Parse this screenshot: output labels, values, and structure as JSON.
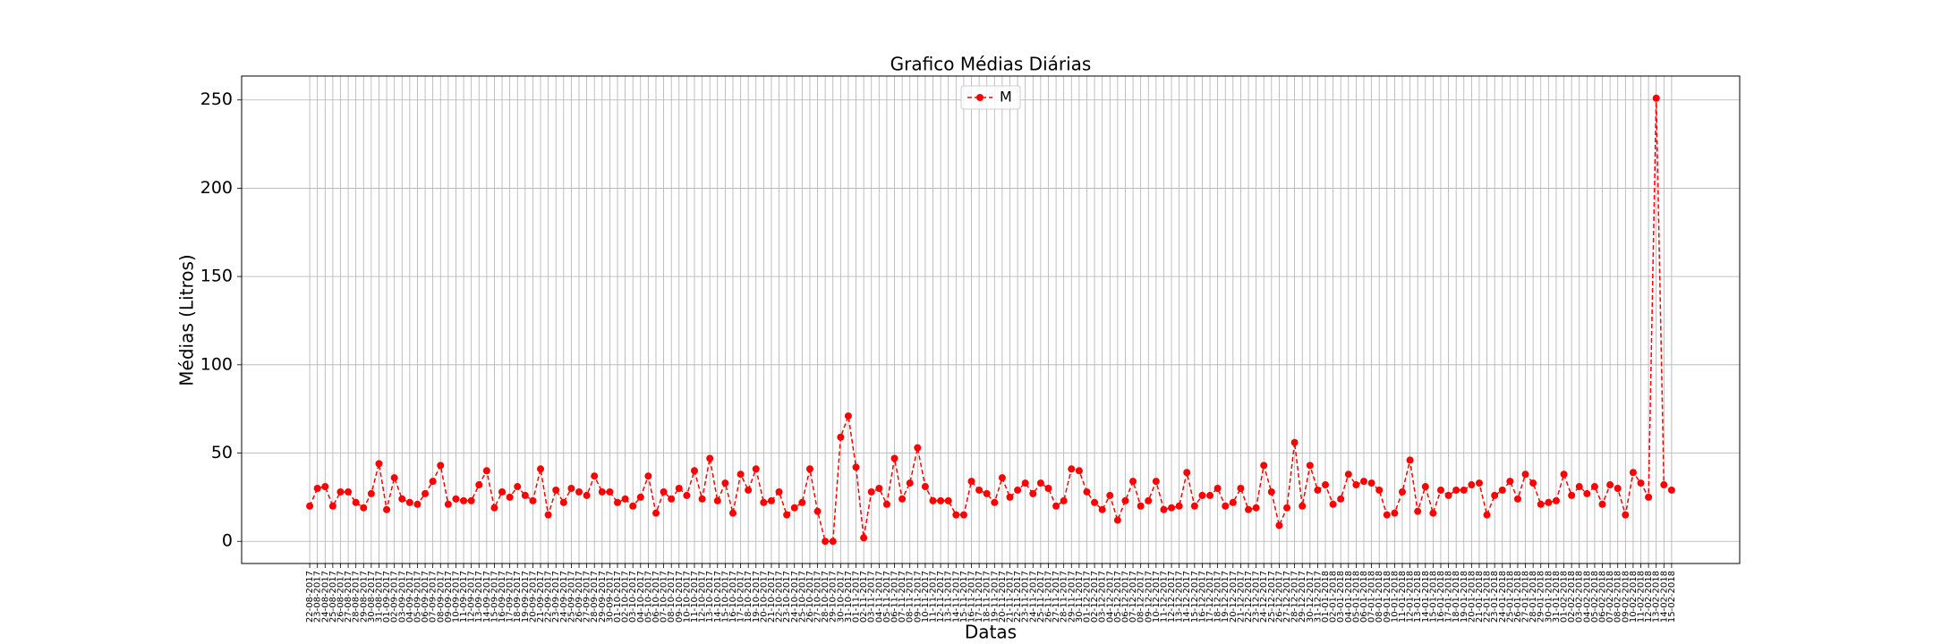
{
  "chart_data": {
    "type": "line",
    "title": "Grafico Médias Diárias",
    "xlabel": "Datas",
    "ylabel": "Médias (Litros)",
    "categories": [
      "22-08-2017",
      "23-08-2017",
      "24-08-2017",
      "25-08-2017",
      "26-08-2017",
      "27-08-2017",
      "28-08-2017",
      "29-08-2017",
      "30-08-2017",
      "31-08-2017",
      "01-09-2017",
      "02-09-2017",
      "03-09-2017",
      "04-09-2017",
      "05-09-2017",
      "06-09-2017",
      "07-09-2017",
      "08-09-2017",
      "09-09-2017",
      "10-09-2017",
      "11-09-2017",
      "12-09-2017",
      "13-09-2017",
      "14-09-2017",
      "15-09-2017",
      "16-09-2017",
      "17-09-2017",
      "18-09-2017",
      "19-09-2017",
      "20-09-2017",
      "21-09-2017",
      "22-09-2017",
      "23-09-2017",
      "24-09-2017",
      "25-09-2017",
      "26-09-2017",
      "27-09-2017",
      "28-09-2017",
      "29-09-2017",
      "30-09-2017",
      "01-10-2017",
      "02-10-2017",
      "03-10-2017",
      "04-10-2017",
      "05-10-2017",
      "06-10-2017",
      "07-10-2017",
      "08-10-2017",
      "09-10-2017",
      "10-10-2017",
      "11-10-2017",
      "12-10-2017",
      "13-10-2017",
      "14-10-2017",
      "15-10-2017",
      "16-10-2017",
      "17-10-2017",
      "18-10-2017",
      "19-10-2017",
      "20-10-2017",
      "21-10-2017",
      "22-10-2017",
      "23-10-2017",
      "24-10-2017",
      "25-10-2017",
      "26-10-2017",
      "27-10-2017",
      "28-10-2017",
      "29-10-2017",
      "30-10-2017",
      "31-10-2017",
      "01-11-2017",
      "02-11-2017",
      "03-11-2017",
      "04-11-2017",
      "05-11-2017",
      "06-11-2017",
      "07-11-2017",
      "08-11-2017",
      "09-11-2017",
      "10-11-2017",
      "11-11-2017",
      "12-11-2017",
      "13-11-2017",
      "14-11-2017",
      "15-11-2017",
      "16-11-2017",
      "17-11-2017",
      "18-11-2017",
      "19-11-2017",
      "20-11-2017",
      "21-11-2017",
      "22-11-2017",
      "23-11-2017",
      "24-11-2017",
      "25-11-2017",
      "26-11-2017",
      "27-11-2017",
      "28-11-2017",
      "29-11-2017",
      "30-11-2017",
      "01-12-2017",
      "02-12-2017",
      "03-12-2017",
      "04-12-2017",
      "05-12-2017",
      "06-12-2017",
      "07-12-2017",
      "08-12-2017",
      "09-12-2017",
      "10-12-2017",
      "11-12-2017",
      "12-12-2017",
      "13-12-2017",
      "14-12-2017",
      "15-12-2017",
      "16-12-2017",
      "17-12-2017",
      "18-12-2017",
      "19-12-2017",
      "20-12-2017",
      "21-12-2017",
      "22-12-2017",
      "23-12-2017",
      "24-12-2017",
      "25-12-2017",
      "26-12-2017",
      "27-12-2017",
      "28-12-2017",
      "29-12-2017",
      "30-12-2017",
      "31-12-2017",
      "01-01-2018",
      "02-01-2018",
      "03-01-2018",
      "04-01-2018",
      "05-01-2018",
      "06-01-2018",
      "07-01-2018",
      "08-01-2018",
      "09-01-2018",
      "10-01-2018",
      "11-01-2018",
      "12-01-2018",
      "13-01-2018",
      "14-01-2018",
      "15-01-2018",
      "16-01-2018",
      "17-01-2018",
      "18-01-2018",
      "19-01-2018",
      "20-01-2018",
      "21-01-2018",
      "22-01-2018",
      "23-01-2018",
      "24-01-2018",
      "25-01-2018",
      "26-01-2018",
      "27-01-2018",
      "28-01-2018",
      "29-01-2018",
      "30-01-2018",
      "31-01-2018",
      "01-02-2018",
      "02-02-2018",
      "03-02-2018",
      "04-02-2018",
      "05-02-2018",
      "06-02-2018",
      "07-02-2018",
      "08-02-2018",
      "09-02-2018",
      "10-02-2018",
      "11-02-2018",
      "12-02-2018",
      "13-02-2018",
      "14-02-2018",
      "15-02-2018"
    ],
    "series": [
      {
        "name": "M",
        "color": "#ff0000",
        "values": [
          20,
          30,
          31,
          20,
          28,
          28,
          22,
          19,
          27,
          44,
          18,
          36,
          24,
          22,
          21,
          27,
          34,
          43,
          21,
          24,
          23,
          23,
          32,
          40,
          19,
          28,
          25,
          31,
          26,
          23,
          41,
          15,
          29,
          22,
          30,
          28,
          26,
          37,
          28,
          28,
          22,
          24,
          20,
          25,
          37,
          16,
          28,
          24,
          30,
          26,
          40,
          24,
          47,
          23,
          33,
          16,
          38,
          29,
          41,
          22,
          23,
          28,
          15,
          19,
          22,
          41,
          17,
          0,
          0,
          59,
          71,
          42,
          2,
          28,
          30,
          21,
          47,
          24,
          33,
          53,
          31,
          23,
          23,
          23,
          15,
          15,
          34,
          29,
          27,
          22,
          36,
          25,
          29,
          33,
          27,
          33,
          30,
          20,
          23,
          41,
          40,
          28,
          22,
          18,
          26,
          12,
          23,
          34,
          20,
          23,
          34,
          18,
          19,
          20,
          39,
          20,
          26,
          26,
          30,
          20,
          22,
          30,
          18,
          19,
          43,
          28,
          9,
          19,
          56,
          20,
          43,
          29,
          32,
          21,
          24,
          38,
          32,
          34,
          33,
          29,
          15,
          16,
          28,
          46,
          17,
          31,
          16,
          29,
          26,
          29,
          29,
          32,
          33,
          15,
          26,
          29,
          34,
          24,
          38,
          33,
          21,
          22,
          23,
          38,
          26,
          31,
          27,
          31,
          21,
          32,
          30,
          15,
          39,
          33,
          25,
          251,
          32,
          29
        ]
      }
    ],
    "ylim": [
      -12.55,
      263.55
    ],
    "yticks": [
      0,
      50,
      100,
      150,
      200,
      250
    ],
    "grid": true,
    "legend": "upper center"
  }
}
